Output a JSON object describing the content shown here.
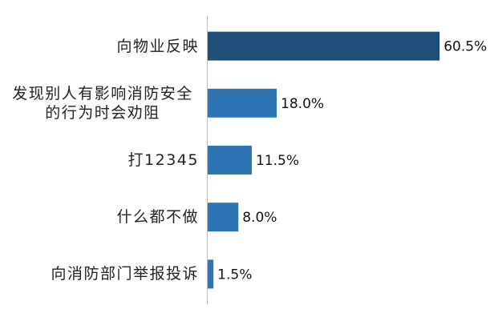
{
  "chart_data": {
    "type": "bar",
    "orientation": "horizontal",
    "categories": [
      "向物业反映",
      "发现别人有影响消防安全的行为时会劝阻",
      "打12345",
      "什么都不做",
      "向消防部门举报投诉"
    ],
    "values": [
      60.5,
      18.0,
      11.5,
      8.0,
      1.5
    ],
    "value_labels": [
      "60.5%",
      "18.0%",
      "11.5%",
      "8.0%",
      "1.5%"
    ],
    "colors": [
      "#1f4e79",
      "#2e75b6",
      "#2e75b6",
      "#2e75b6",
      "#2e75b6"
    ]
  }
}
